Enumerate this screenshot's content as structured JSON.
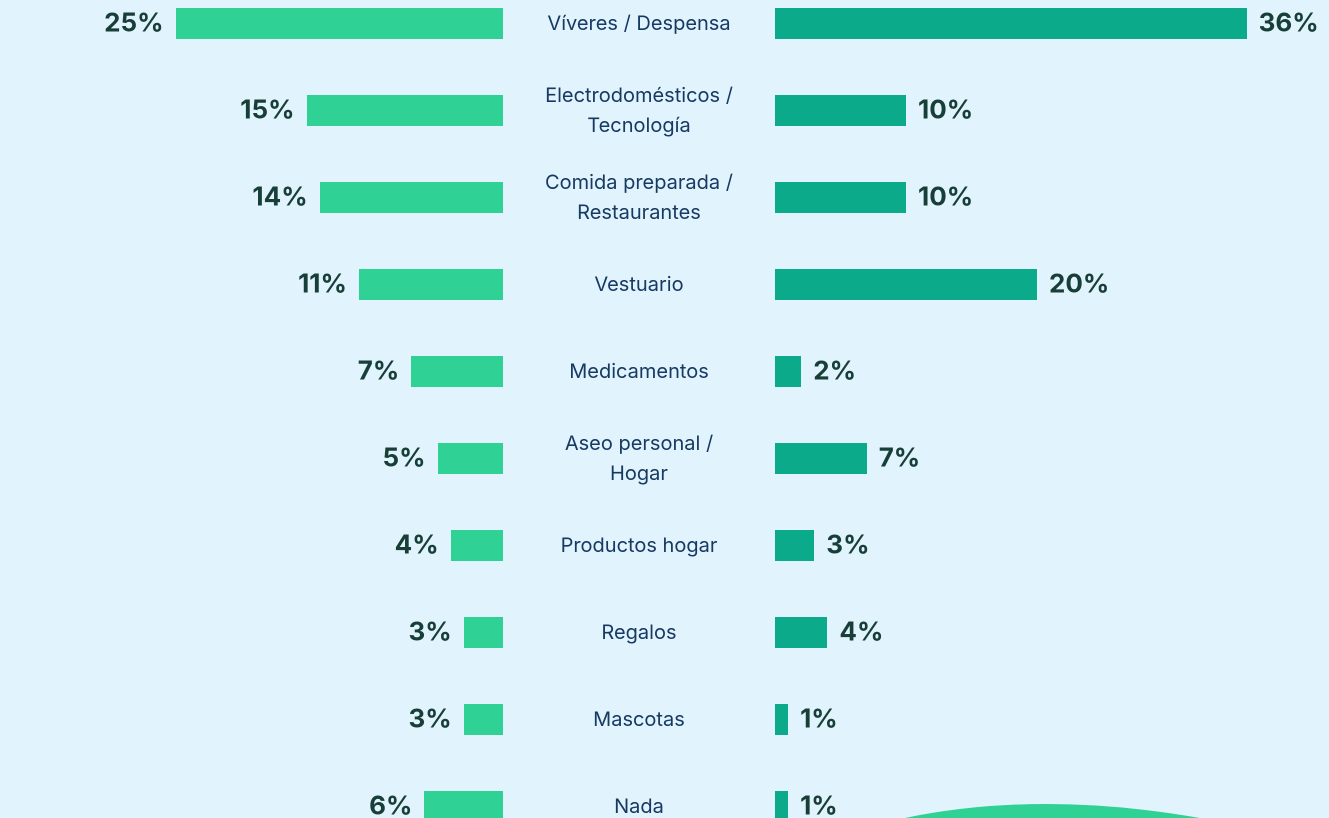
{
  "chart_data": {
    "type": "butterfly",
    "categories": [
      "Víveres / Despensa",
      "Electrodomésticos /\nTecnología",
      "Comida preparada /\nRestaurantes",
      "Vestuario",
      "Medicamentos",
      "Aseo personal /\nHogar",
      "Productos hogar",
      "Regalos",
      "Mascotas",
      "Nada"
    ],
    "series": [
      {
        "color": "#2fd195",
        "values": [
          25,
          15,
          14,
          11,
          7,
          5,
          4,
          3,
          3,
          6
        ],
        "value_labels": [
          "25%",
          "15%",
          "14%",
          "11%",
          "7%",
          "5%",
          "4%",
          "3%",
          "3%",
          "6%"
        ]
      },
      {
        "color": "#0aaa8a",
        "values": [
          36,
          10,
          10,
          20,
          2,
          7,
          3,
          4,
          1,
          1
        ],
        "value_labels": [
          "36%",
          "10%",
          "10%",
          "20%",
          "2%",
          "7%",
          "3%",
          "4%",
          "1%",
          "1%"
        ]
      }
    ]
  }
}
